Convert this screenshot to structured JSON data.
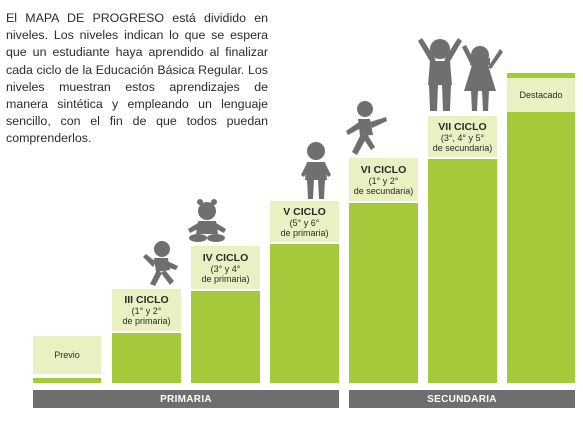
{
  "intro_text": "El MAPA DE PROGRESO está dividido en niveles. Los niveles indican lo que se espera que un estudiante haya aprendido al finalizar cada ciclo de la Educación Básica Regular. Los niveles muestran estos aprendizajes de manera sintética y empleando un lenguaje sencillo, con el fin de que todos puedan comprenderlos.",
  "levels": [
    {
      "title": "",
      "sub": "Previo"
    },
    {
      "title": "III CICLO",
      "sub": "(1° y 2°\nde primaria)"
    },
    {
      "title": "IV CICLO",
      "sub": "(3° y 4°\nde primaria)"
    },
    {
      "title": "V CICLO",
      "sub": "(5° y 6°\nde primaria)"
    },
    {
      "title": "VI CICLO",
      "sub": "(1° y 2°\nde secundaria)"
    },
    {
      "title": "VII CICLO",
      "sub": "(3°, 4° y 5°\nde secundaria)"
    },
    {
      "title": "",
      "sub": "Destacado"
    }
  ],
  "bands": {
    "primaria": "PRIMARIA",
    "secundaria": "SECUNDARIA"
  },
  "colors": {
    "bar": "#a4c93a",
    "label_bg": "#e9f1c3",
    "band": "#6e6e6e",
    "figure": "#6f6f6f"
  },
  "icons": [
    "crawling-baby-icon",
    "sitting-baby-icon",
    "standing-child-icon",
    "running-child-icon",
    "cheering-children-icon"
  ]
}
